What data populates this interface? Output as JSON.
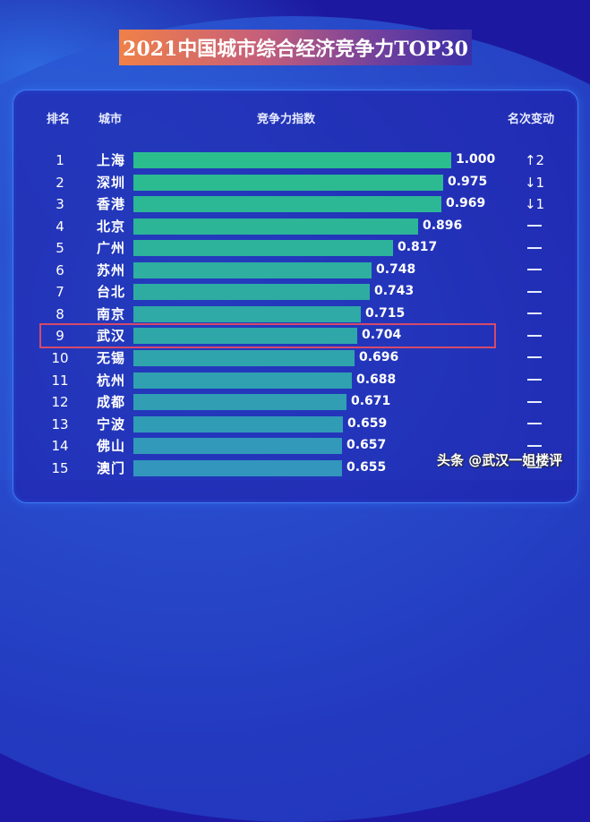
{
  "title": "2021中国城市综合经济竞争力TOP30",
  "headers": {
    "rank": "排名",
    "city": "城市",
    "index": "竞争力指数",
    "change": "名次变动"
  },
  "rows": [
    {
      "rank": "1",
      "city": "上海",
      "value": "1.000",
      "change": "↑2",
      "change_type": "up"
    },
    {
      "rank": "2",
      "city": "深圳",
      "value": "0.975",
      "change": "↓1",
      "change_type": "down"
    },
    {
      "rank": "3",
      "city": "香港",
      "value": "0.969",
      "change": "↓1",
      "change_type": "down"
    },
    {
      "rank": "4",
      "city": "北京",
      "value": "0.896",
      "change": "—",
      "change_type": "same"
    },
    {
      "rank": "5",
      "city": "广州",
      "value": "0.817",
      "change": "—",
      "change_type": "same"
    },
    {
      "rank": "6",
      "city": "苏州",
      "value": "0.748",
      "change": "—",
      "change_type": "same"
    },
    {
      "rank": "7",
      "city": "台北",
      "value": "0.743",
      "change": "—",
      "change_type": "same"
    },
    {
      "rank": "8",
      "city": "南京",
      "value": "0.715",
      "change": "—",
      "change_type": "same"
    },
    {
      "rank": "9",
      "city": "武汉",
      "value": "0.704",
      "change": "—",
      "change_type": "same"
    },
    {
      "rank": "10",
      "city": "无锡",
      "value": "0.696",
      "change": "—",
      "change_type": "same"
    },
    {
      "rank": "11",
      "city": "杭州",
      "value": "0.688",
      "change": "—",
      "change_type": "same"
    },
    {
      "rank": "12",
      "city": "成都",
      "value": "0.671",
      "change": "—",
      "change_type": "same"
    },
    {
      "rank": "13",
      "city": "宁波",
      "value": "0.659",
      "change": "—",
      "change_type": "same"
    },
    {
      "rank": "14",
      "city": "佛山",
      "value": "0.657",
      "change": "—",
      "change_type": "same"
    },
    {
      "rank": "15",
      "city": "澳门",
      "value": "0.655",
      "change": "—",
      "change_type": "same"
    }
  ],
  "highlighted_rank": "9",
  "watermark": "头条 @武汉一姐楼评",
  "colors": {
    "bar_top": "#2bbd8e",
    "bar_bottom": "#3296bd",
    "highlight_border": "#d54a6a",
    "title_gradient_start": "#f08048",
    "title_gradient_end": "#3b2fa8",
    "panel_border": "#3d7cf0",
    "background": "#1e1aa6"
  },
  "chart_data": {
    "type": "bar",
    "orientation": "horizontal",
    "title": "2021中国城市综合经济竞争力TOP30",
    "xlabel": "竞争力指数",
    "ylabel": "城市",
    "categories": [
      "上海",
      "深圳",
      "香港",
      "北京",
      "广州",
      "苏州",
      "台北",
      "南京",
      "武汉",
      "无锡",
      "杭州",
      "成都",
      "宁波",
      "佛山",
      "澳门"
    ],
    "ranks": [
      1,
      2,
      3,
      4,
      5,
      6,
      7,
      8,
      9,
      10,
      11,
      12,
      13,
      14,
      15
    ],
    "values": [
      1.0,
      0.975,
      0.969,
      0.896,
      0.817,
      0.748,
      0.743,
      0.715,
      0.704,
      0.696,
      0.688,
      0.671,
      0.659,
      0.657,
      0.655
    ],
    "rank_change": [
      "↑2",
      "↓1",
      "↓1",
      "—",
      "—",
      "—",
      "—",
      "—",
      "—",
      "—",
      "—",
      "—",
      "—",
      "—",
      "—"
    ],
    "highlight": "武汉",
    "xlim": [
      0,
      1.0
    ],
    "grid": false,
    "legend": null
  }
}
